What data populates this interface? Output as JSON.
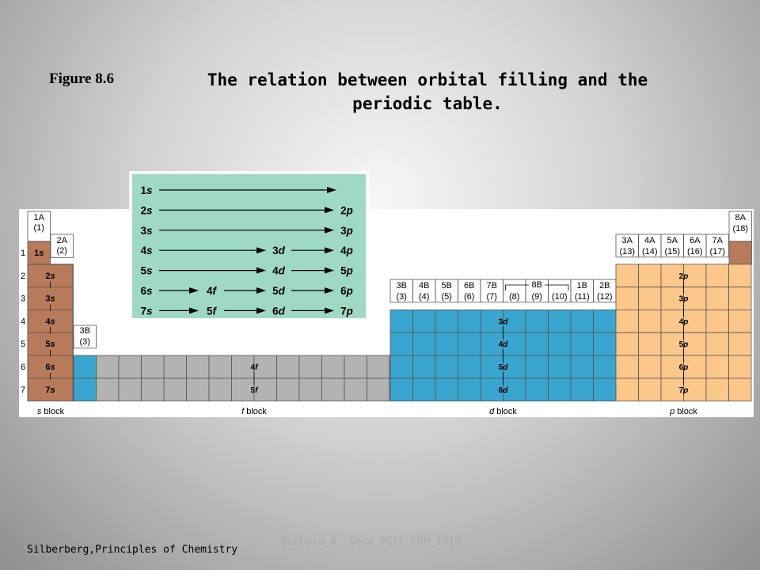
{
  "figure_label": "Figure 8.6",
  "title_line1": "The relation between orbital filling and the",
  "title_line2": "periodic table.",
  "footer_left": "Silberberg,Principles of Chemistry",
  "footer_center": "Barbara A. Gage  PGCC  CHM 1010",
  "colors": {
    "s": "#b77a5a",
    "d": "#3aa6cf",
    "f": "#b3b3b3",
    "p": "#fcc78a",
    "inset": "#9fd9c4"
  },
  "periods": [
    "1",
    "2",
    "3",
    "4",
    "5",
    "6",
    "7"
  ],
  "s_labels": [
    "1s",
    "2s",
    "3s",
    "4s",
    "5s",
    "6s",
    "7s"
  ],
  "group_1A": [
    "1A",
    "(1)"
  ],
  "group_2A": [
    "2A",
    "(2)"
  ],
  "group_3B_s": [
    "3B",
    "(3)"
  ],
  "group_18": [
    "8A",
    "(18)"
  ],
  "d_groups": [
    [
      "3B",
      "(3)"
    ],
    [
      "4B",
      "(4)"
    ],
    [
      "5B",
      "(5)"
    ],
    [
      "6B",
      "(6)"
    ],
    [
      "7B",
      "(7)"
    ],
    [
      "",
      "(8)"
    ],
    [
      "",
      "(9)"
    ],
    [
      "",
      "(10)"
    ],
    [
      "1B",
      "(11)"
    ],
    [
      "2B",
      "(12)"
    ]
  ],
  "d_8B": "8B",
  "p_groups": [
    [
      "3A",
      "(13)"
    ],
    [
      "4A",
      "(14)"
    ],
    [
      "5A",
      "(15)"
    ],
    [
      "6A",
      "(16)"
    ],
    [
      "7A",
      "(17)"
    ]
  ],
  "p_labels": [
    "2p",
    "3p",
    "4p",
    "5p",
    "6p",
    "7p"
  ],
  "d_labels": [
    "3d",
    "4d",
    "5d",
    "6d"
  ],
  "f_labels": [
    "4f",
    "5f"
  ],
  "block_labels": {
    "s": "s block",
    "f": "f block",
    "d": "d block",
    "p": "p block"
  },
  "inset_rows": [
    [
      "1s"
    ],
    [
      "2s",
      "2p"
    ],
    [
      "3s",
      "3p"
    ],
    [
      "4s",
      "3d",
      "4p"
    ],
    [
      "5s",
      "4d",
      "5p"
    ],
    [
      "6s",
      "4f",
      "5d",
      "6p"
    ],
    [
      "7s",
      "5f",
      "6d",
      "7p"
    ]
  ]
}
